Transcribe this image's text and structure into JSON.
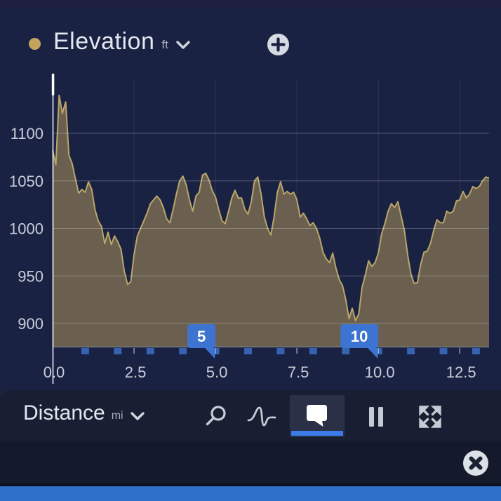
{
  "header": {
    "title": "Elevation",
    "unit": "ft"
  },
  "toolbar": {
    "label": "Distance",
    "unit": "mi"
  },
  "chart_data": {
    "type": "area",
    "series_name": "Elevation",
    "y_unit": "ft",
    "x_axis_name": "Distance",
    "x_unit": "mi",
    "x_range": [
      0,
      13.4
    ],
    "x_start": 0,
    "x_step": 0.1,
    "y_ticks": [
      900,
      950,
      1000,
      1050,
      1100
    ],
    "x_ticks": [
      {
        "value": 0,
        "label": "0.0"
      },
      {
        "value": 2.5,
        "label": "2.5"
      },
      {
        "value": 5,
        "label": "5.0"
      },
      {
        "value": 7.5,
        "label": "7.5"
      },
      {
        "value": 10,
        "label": "10.0"
      },
      {
        "value": 12.5,
        "label": "12.5"
      }
    ],
    "mile_ticks": [
      1,
      2,
      3,
      4,
      5,
      6,
      7,
      8,
      9,
      10,
      11,
      12,
      13
    ],
    "mile_markers": [
      {
        "mile": 5,
        "label": "5"
      },
      {
        "mile": 10,
        "label": "10"
      }
    ],
    "cursor_x_mi": 0,
    "grid": true,
    "legend_position": "top-left",
    "elevations_ft": [
      1082,
      1067,
      1140,
      1121,
      1133,
      1077,
      1068,
      1052,
      1037,
      1041,
      1038,
      1049,
      1041,
      1020,
      1008,
      1002,
      984,
      996,
      983,
      992,
      986,
      978,
      955,
      941,
      944,
      972,
      992,
      1000,
      1008,
      1016,
      1026,
      1030,
      1034,
      1030,
      1022,
      1010,
      1006,
      1020,
      1036,
      1050,
      1055,
      1046,
      1030,
      1018,
      1034,
      1038,
      1056,
      1058,
      1051,
      1040,
      1033,
      1020,
      1008,
      1005,
      1018,
      1032,
      1040,
      1032,
      1032,
      1020,
      1015,
      1028,
      1050,
      1054,
      1036,
      1012,
      1000,
      993,
      1012,
      1038,
      1049,
      1036,
      1039,
      1036,
      1038,
      1030,
      1012,
      1016,
      1010,
      1003,
      1006,
      1000,
      990,
      975,
      968,
      964,
      974,
      958,
      946,
      940,
      925,
      905,
      916,
      903,
      910,
      938,
      951,
      966,
      960,
      964,
      974,
      994,
      1005,
      1018,
      1026,
      1022,
      1028,
      1013,
      998,
      972,
      952,
      942,
      943,
      962,
      975,
      976,
      984,
      998,
      1009,
      1006,
      1006,
      1018,
      1016,
      1018,
      1029,
      1030,
      1039,
      1032,
      1036,
      1044,
      1042,
      1044,
      1050,
      1054,
      1053
    ],
    "fill_color": "#6b6050",
    "line_color": "#b8a669",
    "marker_color": "#3d74d1",
    "mile_tick_color": "#3663b0",
    "axis_text_color": "#c8cdda"
  },
  "colors": {
    "bg": "#1a2243",
    "top_strip": "#1f2040",
    "toolbar_bg": "#191f33",
    "toolbar_selected_bg": "#2a3147",
    "toolbar_underline": "#3b7ce8",
    "bottom_bg": "#141a2b",
    "bottom_divider": "#0c101f",
    "blue_bar": "#2f71ca",
    "icon": "#c7ccd6",
    "title_text": "#e3e7ef",
    "muted_text": "#a9b0c0",
    "series_dot": "#c2a45f"
  }
}
